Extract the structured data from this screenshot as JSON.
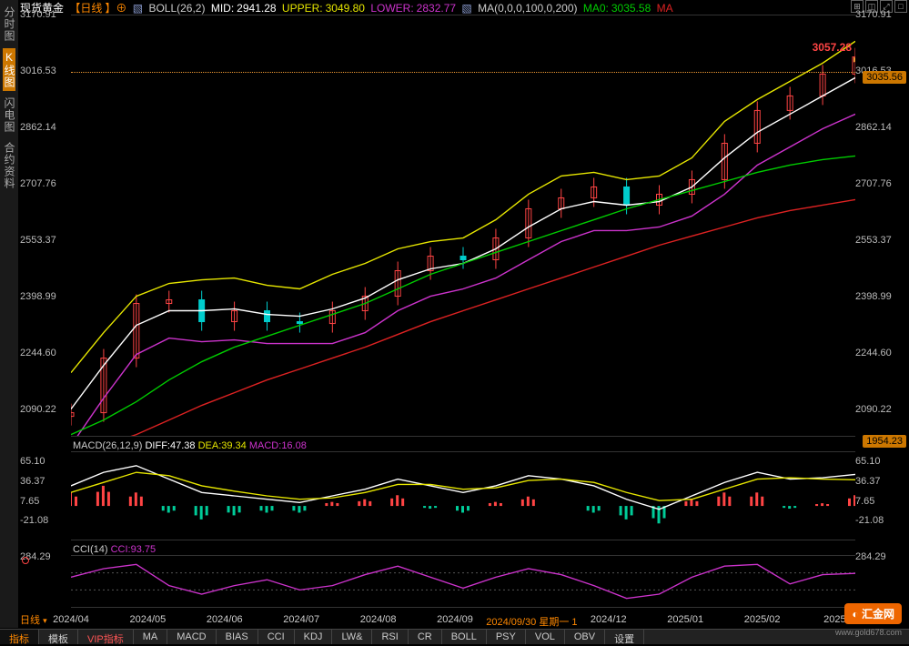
{
  "instrument": "现货黄金",
  "timeframe": "日线",
  "sidebar": {
    "items": [
      {
        "label": "分时图",
        "active": false
      },
      {
        "label": "K线图",
        "active": true
      },
      {
        "label": "闪电图",
        "active": false
      },
      {
        "label": "合约资料",
        "active": false
      }
    ]
  },
  "indicators_header": {
    "boll": {
      "label": "BOLL(26,2)",
      "mid_label": "MID:",
      "mid": "2941.28",
      "upper_label": "UPPER:",
      "upper": "3049.80",
      "lower_label": "LOWER:",
      "lower": "2832.77"
    },
    "ma": {
      "label": "MA(0,0,0,100,0,200)",
      "ma0_label": "MA0:",
      "ma0": "3035.58",
      "extra": "MA"
    }
  },
  "colors": {
    "bg": "#000000",
    "text": "#cccccc",
    "grid": "#333333",
    "boll_upper": "#e6e600",
    "boll_mid": "#ffffff",
    "boll_lower": "#cc33cc",
    "ma100": "#00cc00",
    "ma200": "#dd2222",
    "candle_up": "#ff4444",
    "candle_down": "#00cccc",
    "label_mid": "#ffffff",
    "label_upper": "#e6e600",
    "label_lower": "#cc33cc",
    "label_orange": "#ff8800",
    "label_gray": "#cccccc",
    "macd_hist_pos": "#ff4444",
    "macd_hist_neg": "#00cc99",
    "cci": "#cc33cc",
    "highlight_date": "#ff8800"
  },
  "main_chart": {
    "ymin": 2016.53,
    "ymax": 3170.91,
    "yticks": [
      3170.91,
      3016.53,
      2862.14,
      2707.76,
      2553.37,
      2398.99,
      2244.6,
      2090.22
    ],
    "latest_price": "3057.28",
    "price_tag_right": "3035.56",
    "price_tag_bottom_right": "1954.23",
    "hline_price": 3016.53,
    "xlabels": [
      "2024/04",
      "2024/05",
      "2024/06",
      "2024/07",
      "2024/08",
      "2024/09",
      "2024/09/30 星期一 1",
      "2024/12",
      "2025/01",
      "2025/02",
      "2025/0"
    ],
    "xlabel_highlight_index": 6,
    "series": {
      "upper": [
        2190,
        2300,
        2400,
        2435,
        2445,
        2450,
        2430,
        2420,
        2460,
        2490,
        2530,
        2550,
        2560,
        2610,
        2680,
        2730,
        2740,
        2720,
        2730,
        2780,
        2880,
        2940,
        2990,
        3040,
        3100
      ],
      "mid": [
        2090,
        2210,
        2320,
        2360,
        2360,
        2365,
        2350,
        2345,
        2365,
        2395,
        2445,
        2475,
        2490,
        2530,
        2590,
        2640,
        2660,
        2650,
        2660,
        2700,
        2780,
        2850,
        2900,
        2950,
        3000
      ],
      "lower": [
        1990,
        2120,
        2240,
        2285,
        2275,
        2280,
        2270,
        2270,
        2270,
        2300,
        2360,
        2400,
        2420,
        2450,
        2500,
        2550,
        2580,
        2580,
        2590,
        2620,
        2680,
        2760,
        2810,
        2860,
        2900
      ],
      "ma100": [
        2020,
        2060,
        2110,
        2170,
        2220,
        2260,
        2290,
        2320,
        2350,
        2380,
        2420,
        2460,
        2490,
        2520,
        2550,
        2580,
        2610,
        2640,
        2665,
        2690,
        2715,
        2740,
        2760,
        2775,
        2785
      ],
      "ma200": [
        1960,
        1990,
        2020,
        2060,
        2100,
        2135,
        2170,
        2200,
        2230,
        2260,
        2295,
        2330,
        2360,
        2390,
        2420,
        2450,
        2480,
        2510,
        2540,
        2565,
        2590,
        2615,
        2635,
        2650,
        2665
      ],
      "close": [
        2080,
        2230,
        2380,
        2390,
        2330,
        2360,
        2330,
        2325,
        2360,
        2400,
        2470,
        2510,
        2500,
        2560,
        2640,
        2670,
        2700,
        2650,
        2680,
        2720,
        2820,
        2910,
        2950,
        3010,
        3057
      ]
    }
  },
  "macd_panel": {
    "header": {
      "label": "MACD(26,12,9)",
      "diff_label": "DIFF:",
      "diff": "47.38",
      "dea_label": "DEA:",
      "dea": "39.34",
      "macd_label": "MACD:",
      "macd": "16.08"
    },
    "ymin": -50,
    "ymax": 80,
    "yticks": [
      65.1,
      36.37,
      7.65,
      -21.08
    ],
    "diff": [
      30,
      50,
      60,
      40,
      20,
      15,
      10,
      5,
      15,
      25,
      40,
      30,
      20,
      30,
      45,
      40,
      30,
      10,
      -5,
      15,
      35,
      50,
      40,
      42,
      47
    ],
    "dea": [
      20,
      35,
      50,
      45,
      30,
      22,
      15,
      10,
      12,
      20,
      32,
      32,
      25,
      27,
      38,
      40,
      35,
      20,
      8,
      10,
      25,
      40,
      42,
      40,
      39
    ],
    "hist": [
      20,
      30,
      20,
      -10,
      -20,
      -14,
      -10,
      -10,
      6,
      10,
      16,
      -4,
      -10,
      6,
      14,
      0,
      -10,
      -20,
      -26,
      10,
      20,
      20,
      -4,
      4,
      16
    ]
  },
  "cci_panel": {
    "header": {
      "label": "CCI(14)",
      "val_label": "CCI:",
      "val": "93.75"
    },
    "ymin": -300,
    "ymax": 300,
    "yticks": [
      284.29
    ],
    "values": [
      50,
      150,
      200,
      -50,
      -150,
      -50,
      20,
      -100,
      -50,
      80,
      180,
      50,
      -80,
      50,
      150,
      80,
      -50,
      -200,
      -150,
      50,
      180,
      200,
      -30,
      80,
      94
    ]
  },
  "bottom_timeframe": "日线",
  "bottom_tabs": [
    "指标",
    "模板",
    "VIP指标",
    "MA",
    "MACD",
    "BIAS",
    "CCI",
    "KDJ",
    "LW&",
    "RSI",
    "CR",
    "BOLL",
    "PSY",
    "VOL",
    "OBV",
    "设置"
  ],
  "bottom_tabs_active_index": 0,
  "logo": {
    "text": "汇金网",
    "url": "www.gold678.com"
  }
}
